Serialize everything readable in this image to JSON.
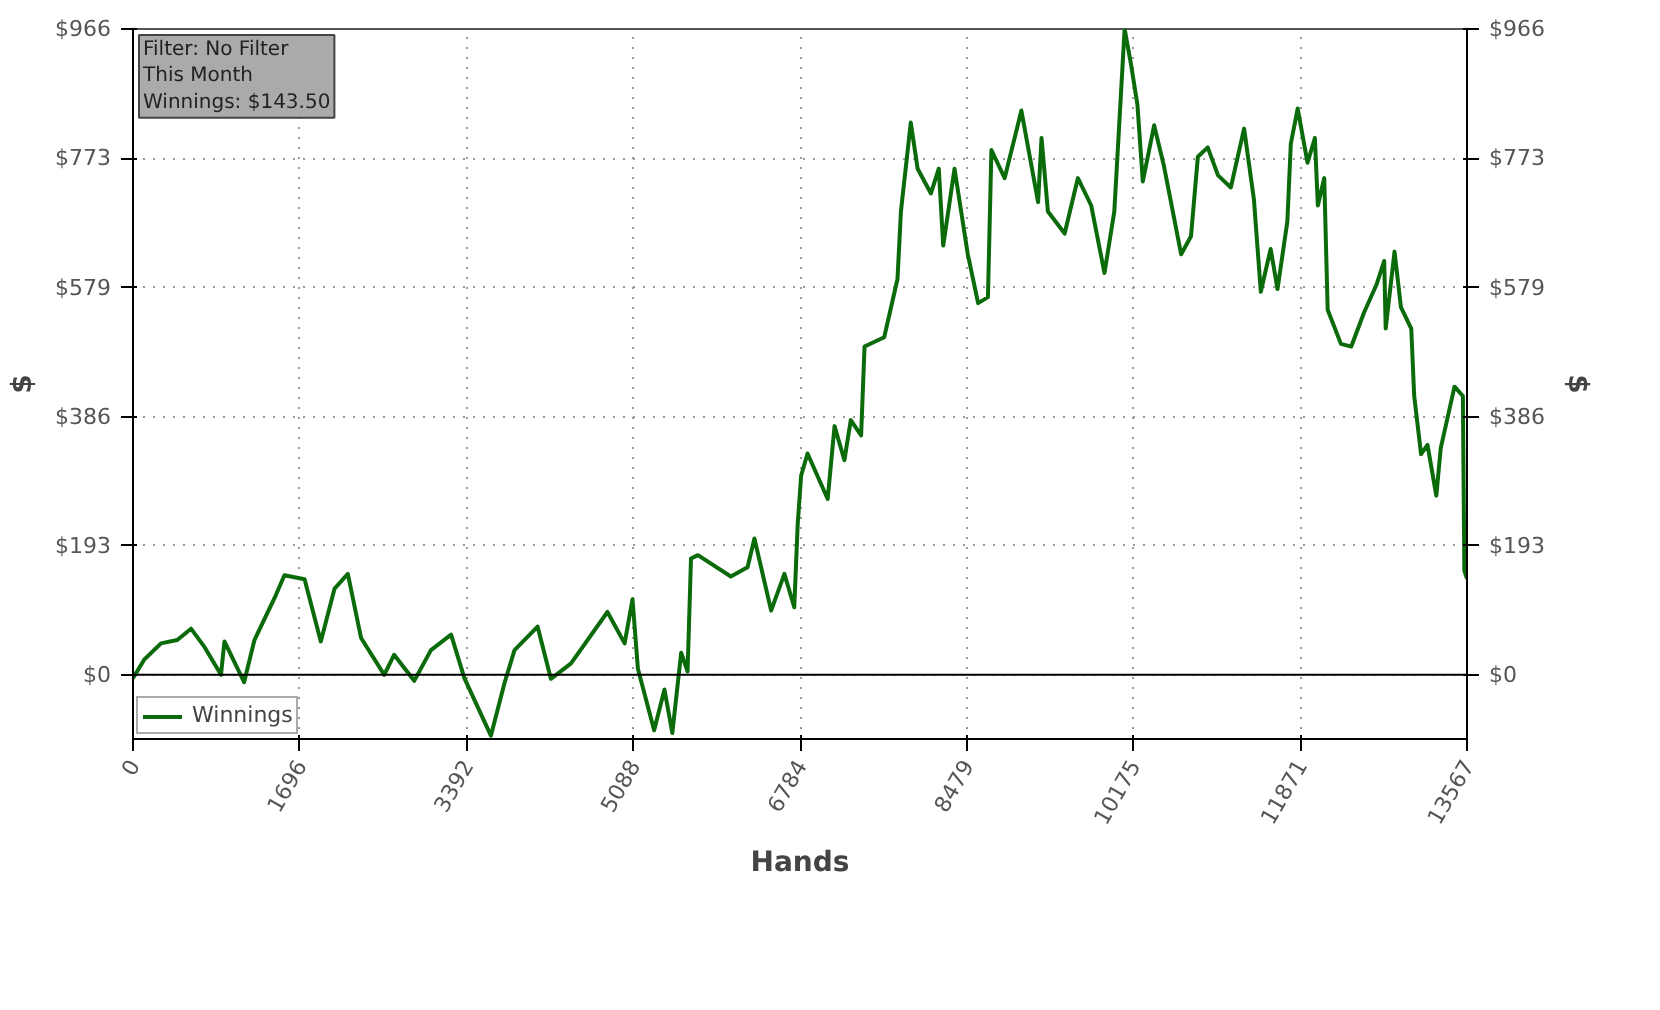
{
  "chart_data": {
    "type": "line",
    "xlabel": "Hands",
    "ylabel": "$",
    "y2label": "$",
    "annotations": [
      "Filter: No Filter\nThis Month\nWinnings: $143.50"
    ],
    "x": [
      0,
      115,
      285,
      450,
      590,
      730,
      895,
      930,
      1130,
      1235,
      1440,
      1540,
      1745,
      1910,
      2050,
      2185,
      2320,
      2555,
      2655,
      2860,
      3030,
      3235,
      3370,
      3640,
      3775,
      3880,
      4115,
      4250,
      4455,
      4825,
      5000,
      5080,
      5135,
      5300,
      5405,
      5485,
      5575,
      5640,
      5675,
      5745,
      6080,
      6250,
      6320,
      6490,
      6625,
      6725,
      6760,
      6795,
      6860,
      7065,
      7135,
      7235,
      7300,
      7405,
      7440,
      7640,
      7775,
      7810,
      7910,
      7980,
      8115,
      8195,
      8240,
      8355,
      8490,
      8595,
      8695,
      8730,
      8865,
      9035,
      9205,
      9240,
      9305,
      9475,
      9610,
      9745,
      9880,
      9980,
      10085,
      10150,
      10215,
      10270,
      10385,
      10485,
      10660,
      10760,
      10830,
      10930,
      11035,
      11165,
      11300,
      11400,
      11470,
      11570,
      11640,
      11740,
      11775,
      11845,
      11945,
      12020,
      12050,
      12115,
      12150,
      12285,
      12390,
      12520,
      12645,
      12725,
      12740,
      12830,
      12895,
      13000,
      13030,
      13100,
      13165,
      13255,
      13300,
      13440,
      13525,
      13540,
      13567
    ],
    "series": [
      {
        "name": "Winnings",
        "color": "#0b6b0b",
        "values": [
          -5,
          23,
          47,
          52,
          69,
          41,
          0,
          50,
          -11,
          52,
          115,
          149,
          143,
          50,
          129,
          151,
          55,
          0,
          30,
          -9,
          37,
          60,
          -5,
          -91,
          -14,
          37,
          72,
          -6,
          17,
          94,
          47,
          113,
          9,
          -83,
          -22,
          -87,
          33,
          5,
          174,
          179,
          147,
          161,
          204,
          96,
          151,
          101,
          225,
          298,
          331,
          263,
          372,
          321,
          381,
          358,
          491,
          505,
          592,
          693,
          826,
          757,
          720,
          757,
          642,
          757,
          629,
          556,
          565,
          785,
          743,
          844,
          707,
          803,
          693,
          660,
          743,
          702,
          601,
          693,
          966,
          913,
          853,
          738,
          822,
          761,
          629,
          656,
          775,
          789,
          747,
          729,
          817,
          711,
          573,
          637,
          577,
          678,
          794,
          847,
          766,
          803,
          702,
          743,
          546,
          495,
          491,
          542,
          583,
          619,
          518,
          633,
          550,
          518,
          417,
          330,
          344,
          268,
          339,
          431,
          417,
          156,
          144
        ]
      }
    ],
    "xlim": [
      0,
      13567
    ],
    "xticks": [
      0,
      1696,
      3392,
      5088,
      6784,
      8479,
      10175,
      11871,
      13567
    ],
    "ylim": [
      -96,
      966
    ],
    "yticks": [
      {
        "value": 0,
        "label": "$0"
      },
      {
        "value": 193,
        "label": "$193"
      },
      {
        "value": 386,
        "label": "$386"
      },
      {
        "value": 579,
        "label": "$579"
      },
      {
        "value": 773,
        "label": "$773"
      },
      {
        "value": 966,
        "label": "$966"
      }
    ],
    "y2lim": [
      -96,
      966
    ],
    "y2ticks": [
      {
        "value": 0,
        "label": "$0"
      },
      {
        "value": 193,
        "label": "$193"
      },
      {
        "value": 386,
        "label": "$386"
      },
      {
        "value": 579,
        "label": "$579"
      },
      {
        "value": 773,
        "label": "$773"
      },
      {
        "value": 966,
        "label": "$966"
      }
    ],
    "ref_lines": [
      {
        "axis": "y",
        "value": 0,
        "color": "#000000"
      }
    ],
    "grid": true,
    "legend": "bottom left",
    "marker": "none",
    "line_style": "solid"
  }
}
